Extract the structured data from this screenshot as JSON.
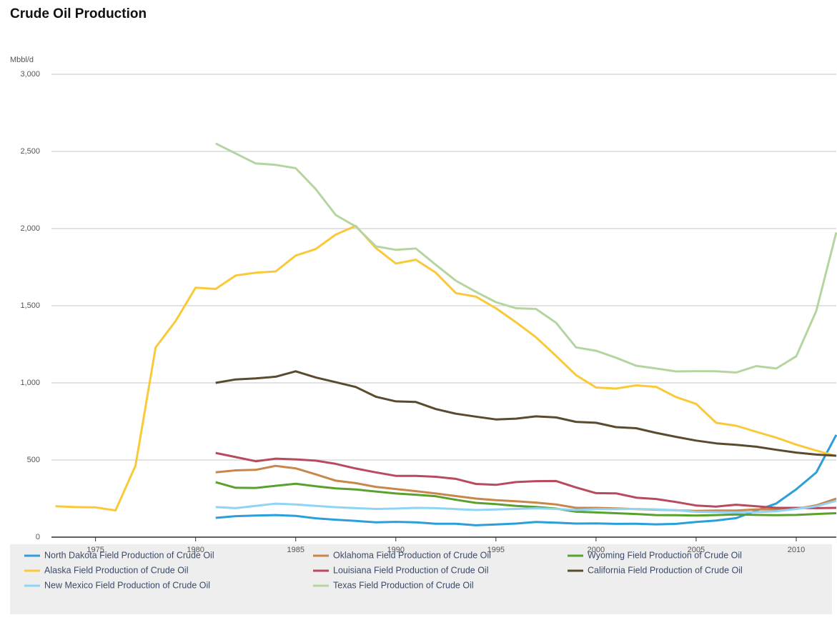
{
  "chart_data": {
    "type": "line",
    "title": "Crude Oil Production",
    "y_label": "Mbbl/d",
    "x": [
      1973,
      1974,
      1975,
      1976,
      1977,
      1978,
      1979,
      1980,
      1981,
      1982,
      1983,
      1984,
      1985,
      1986,
      1987,
      1988,
      1989,
      1990,
      1991,
      1992,
      1993,
      1994,
      1995,
      1996,
      1997,
      1998,
      1999,
      2000,
      2001,
      2002,
      2003,
      2004,
      2005,
      2006,
      2007,
      2008,
      2009,
      2010,
      2011,
      2012
    ],
    "xlim": [
      1972.8,
      2012
    ],
    "xticks": [
      1975,
      1980,
      1985,
      1990,
      1995,
      2000,
      2005,
      2010
    ],
    "ylim": [
      0,
      3000
    ],
    "yticks": [
      0,
      500,
      {
        "value": 1000,
        "label": "1,000"
      },
      {
        "value": 1500,
        "label": "1,500"
      },
      {
        "value": 2000,
        "label": "2,000"
      },
      {
        "value": 2500,
        "label": "2,500"
      },
      {
        "value": 3000,
        "label": "3,000"
      }
    ],
    "grid": true,
    "series": [
      {
        "name": "North Dakota Field Production of Crude Oil",
        "color": "#2b9fd9",
        "values": [
          null,
          null,
          null,
          null,
          null,
          null,
          null,
          null,
          125,
          136,
          140,
          143,
          138,
          122,
          113,
          105,
          96,
          99,
          96,
          87,
          87,
          77,
          82,
          88,
          98,
          94,
          88,
          89,
          86,
          87,
          83,
          86,
          98,
          108,
          123,
          172,
          218,
          310,
          419,
          663
        ]
      },
      {
        "name": "Oklahoma Field Production of Crude Oil",
        "color": "#c8864a",
        "values": [
          null,
          null,
          null,
          null,
          null,
          null,
          null,
          null,
          420,
          433,
          436,
          462,
          446,
          407,
          366,
          350,
          326,
          312,
          298,
          283,
          266,
          250,
          240,
          233,
          224,
          212,
          190,
          190,
          186,
          182,
          178,
          174,
          170,
          172,
          172,
          180,
          180,
          183,
          206,
          250
        ]
      },
      {
        "name": "Wyoming Field Production of Crude Oil",
        "color": "#5aa02c",
        "values": [
          null,
          null,
          null,
          null,
          null,
          null,
          null,
          null,
          356,
          320,
          319,
          333,
          346,
          330,
          316,
          309,
          296,
          283,
          275,
          265,
          242,
          222,
          214,
          203,
          196,
          185,
          165,
          160,
          155,
          150,
          143,
          142,
          140,
          143,
          147,
          144,
          142,
          144,
          150,
          155
        ]
      },
      {
        "name": "Alaska Field Production of Crude Oil",
        "color": "#f9c939",
        "values": [
          200,
          195,
          193,
          173,
          464,
          1229,
          1401,
          1617,
          1609,
          1696,
          1714,
          1722,
          1825,
          1867,
          1961,
          2017,
          1874,
          1773,
          1798,
          1714,
          1582,
          1559,
          1484,
          1393,
          1296,
          1175,
          1050,
          970,
          963,
          984,
          974,
          908,
          864,
          741,
          722,
          683,
          645,
          600,
          561,
          526
        ]
      },
      {
        "name": "Louisiana Field Production of Crude Oil",
        "color": "#b94a5e",
        "values": [
          null,
          null,
          null,
          null,
          null,
          null,
          null,
          null,
          546,
          519,
          492,
          509,
          504,
          496,
          475,
          445,
          420,
          397,
          397,
          391,
          378,
          345,
          339,
          357,
          363,
          364,
          322,
          285,
          284,
          256,
          247,
          228,
          205,
          198,
          210,
          200,
          190,
          190,
          188,
          190
        ]
      },
      {
        "name": "California Field Production of Crude Oil",
        "color": "#5a4a2e",
        "values": [
          null,
          null,
          null,
          null,
          null,
          null,
          null,
          null,
          1000,
          1022,
          1029,
          1040,
          1075,
          1035,
          1004,
          973,
          910,
          880,
          876,
          830,
          800,
          781,
          763,
          768,
          783,
          776,
          747,
          741,
          713,
          706,
          676,
          650,
          626,
          608,
          598,
          586,
          566,
          548,
          535,
          528
        ]
      },
      {
        "name": "New Mexico Field Production of Crude Oil",
        "color": "#8fd3f5",
        "values": [
          null,
          null,
          null,
          null,
          null,
          null,
          null,
          null,
          195,
          188,
          203,
          217,
          212,
          203,
          194,
          188,
          183,
          185,
          190,
          188,
          182,
          176,
          179,
          183,
          187,
          183,
          176,
          181,
          182,
          183,
          180,
          175,
          164,
          162,
          161,
          162,
          168,
          183,
          200,
          235
        ]
      },
      {
        "name": "Texas Field Production of Crude Oil",
        "color": "#b5d5a0",
        "values": [
          null,
          null,
          null,
          null,
          null,
          null,
          null,
          null,
          2552,
          2487,
          2422,
          2413,
          2391,
          2256,
          2088,
          2013,
          1885,
          1862,
          1871,
          1765,
          1662,
          1590,
          1523,
          1484,
          1479,
          1390,
          1230,
          1208,
          1163,
          1111,
          1093,
          1074,
          1076,
          1075,
          1067,
          1109,
          1093,
          1172,
          1466,
          1975
        ]
      }
    ]
  }
}
